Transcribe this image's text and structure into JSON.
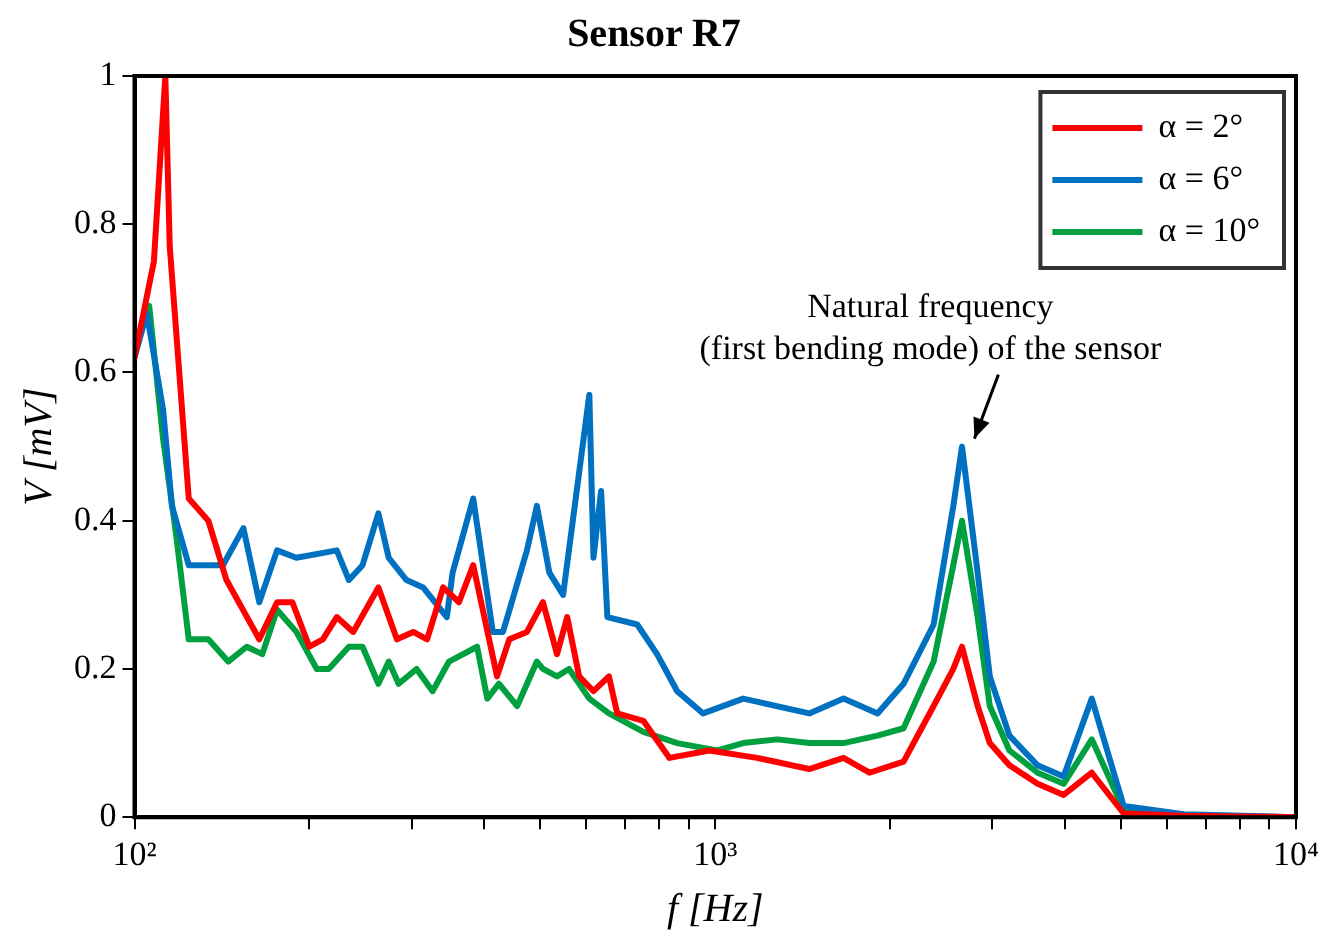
{
  "chart_data": {
    "type": "line",
    "title": "Sensor R7",
    "xlabel": "f [Hz]",
    "ylabel": "V [mV]",
    "log": "x",
    "xlim": [
      100,
      10000
    ],
    "ylim": [
      0,
      1
    ],
    "xticks": [
      {
        "value": 100,
        "label": "10²"
      },
      {
        "value": 200,
        "label": null
      },
      {
        "value": 300,
        "label": null
      },
      {
        "value": 400,
        "label": null
      },
      {
        "value": 500,
        "label": null
      },
      {
        "value": 600,
        "label": null
      },
      {
        "value": 700,
        "label": null
      },
      {
        "value": 800,
        "label": null
      },
      {
        "value": 900,
        "label": null
      },
      {
        "value": 1000,
        "label": "10³"
      },
      {
        "value": 2000,
        "label": null
      },
      {
        "value": 3000,
        "label": null
      },
      {
        "value": 4000,
        "label": null
      },
      {
        "value": 5000,
        "label": null
      },
      {
        "value": 6000,
        "label": null
      },
      {
        "value": 7000,
        "label": null
      },
      {
        "value": 8000,
        "label": null
      },
      {
        "value": 9000,
        "label": null
      },
      {
        "value": 10000,
        "label": "10⁴"
      }
    ],
    "yticks": [
      0,
      0.2,
      0.4,
      0.6,
      0.8,
      1
    ],
    "grid": false,
    "legend": "top right",
    "marker": "none",
    "line_style": "solid",
    "annotations": [
      {
        "text": "Natural frequency\n(first bending mode) of the sensor",
        "x": 2750,
        "y": 0.5
      }
    ],
    "series": [
      {
        "name": "α = 2°",
        "color": "#ff0000",
        "x": [
          100,
          108,
          113,
          115,
          124,
          134,
          144,
          164,
          176,
          187,
          200,
          211,
          223,
          238,
          263,
          283,
          302,
          319,
          340,
          362,
          383,
          421,
          442,
          474,
          505,
          534,
          556,
          583,
          617,
          656,
          678,
          752,
          834,
          977,
          1181,
          1452,
          1663,
          1843,
          2110,
          2377,
          2570,
          2660,
          2830,
          2970,
          3210,
          3590,
          3980,
          4450,
          5050,
          6410,
          10000
        ],
        "values": [
          0.62,
          0.75,
          1,
          0.77,
          0.43,
          0.4,
          0.32,
          0.24,
          0.29,
          0.29,
          0.23,
          0.24,
          0.27,
          0.25,
          0.31,
          0.24,
          0.25,
          0.24,
          0.31,
          0.29,
          0.34,
          0.19,
          0.24,
          0.25,
          0.29,
          0.22,
          0.27,
          0.19,
          0.17,
          0.19,
          0.14,
          0.13,
          0.08,
          0.09,
          0.08,
          0.065,
          0.08,
          0.06,
          0.075,
          0.15,
          0.2,
          0.23,
          0.15,
          0.1,
          0.07,
          0.045,
          0.03,
          0.06,
          0.005,
          0.002,
          0
        ]
      },
      {
        "name": "α = 6°",
        "color": "#0070c0",
        "x": [
          100,
          105,
          112,
          116,
          124,
          142,
          154,
          164,
          176,
          190,
          223,
          234,
          247,
          263,
          274,
          294,
          314,
          345,
          353,
          383,
          414,
          431,
          474,
          493,
          518,
          547,
          607,
          617,
          636,
          652,
          734,
          794,
          860,
          953,
          1117,
          1452,
          1663,
          1903,
          2110,
          2377,
          2570,
          2660,
          2830,
          2970,
          3210,
          3590,
          3980,
          4450,
          5050,
          6410,
          10000
        ],
        "values": [
          0.62,
          0.68,
          0.55,
          0.42,
          0.34,
          0.34,
          0.39,
          0.29,
          0.36,
          0.35,
          0.36,
          0.32,
          0.34,
          0.41,
          0.35,
          0.32,
          0.31,
          0.27,
          0.33,
          0.43,
          0.25,
          0.25,
          0.36,
          0.42,
          0.33,
          0.3,
          0.57,
          0.35,
          0.44,
          0.27,
          0.26,
          0.22,
          0.17,
          0.14,
          0.16,
          0.14,
          0.16,
          0.14,
          0.18,
          0.26,
          0.42,
          0.5,
          0.33,
          0.19,
          0.11,
          0.07,
          0.055,
          0.16,
          0.015,
          0.004,
          0
        ]
      },
      {
        "name": "α = 10°",
        "color": "#00a040",
        "x": [
          100,
          106,
          112,
          118,
          124,
          134,
          145,
          156,
          166,
          176,
          190,
          206,
          216,
          234,
          247,
          263,
          274,
          285,
          306,
          326,
          348,
          389,
          405,
          424,
          456,
          493,
          505,
          534,
          560,
          607,
          656,
          752,
          860,
          1008,
          1117,
          1279,
          1452,
          1663,
          1903,
          2110,
          2377,
          2570,
          2660,
          2830,
          2970,
          3210,
          3590,
          3980,
          4450,
          5050,
          6410,
          10000
        ],
        "values": [
          0.63,
          0.69,
          0.51,
          0.38,
          0.24,
          0.24,
          0.21,
          0.23,
          0.22,
          0.28,
          0.25,
          0.2,
          0.2,
          0.23,
          0.23,
          0.18,
          0.21,
          0.18,
          0.2,
          0.17,
          0.21,
          0.23,
          0.16,
          0.18,
          0.15,
          0.21,
          0.2,
          0.19,
          0.2,
          0.16,
          0.14,
          0.115,
          0.1,
          0.09,
          0.1,
          0.105,
          0.1,
          0.1,
          0.11,
          0.12,
          0.21,
          0.34,
          0.4,
          0.27,
          0.15,
          0.09,
          0.06,
          0.045,
          0.105,
          0.01,
          0.003,
          0
        ]
      }
    ]
  }
}
